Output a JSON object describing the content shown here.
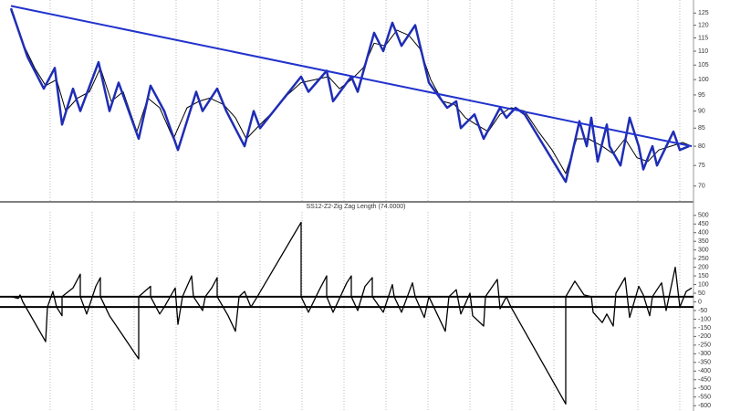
{
  "chart_data": [
    {
      "type": "line",
      "log_scale": true,
      "xlim": [
        10,
        760
      ],
      "ylim": [
        67,
        129
      ],
      "yticks": [
        70,
        75,
        80,
        85,
        90,
        95,
        100,
        105,
        110,
        115,
        120,
        125
      ],
      "series": [
        {
          "color": "#000000",
          "width": 1,
          "x": [
            12,
            25,
            38,
            50,
            62,
            72,
            85,
            98,
            110,
            122,
            135,
            150,
            162,
            175,
            190,
            205,
            218,
            230,
            245,
            258,
            270,
            285,
            300,
            315,
            330,
            345,
            360,
            372,
            385,
            398,
            410,
            422,
            435,
            448,
            460,
            472,
            485,
            498,
            510,
            522,
            535,
            548,
            560,
            575,
            590,
            605,
            620,
            632,
            645,
            660,
            672,
            685,
            698,
            710,
            722,
            735,
            748,
            758
          ],
          "values": [
            126,
            113,
            104,
            98,
            100,
            90,
            94,
            96,
            104,
            93,
            96,
            84,
            94,
            91,
            82,
            91,
            93,
            94,
            92,
            88,
            82,
            86,
            90,
            95,
            99,
            100,
            101,
            97,
            100,
            104,
            113,
            112,
            118,
            116,
            111,
            100,
            93,
            92,
            88,
            86,
            84,
            89,
            91,
            90,
            84,
            79,
            73,
            82,
            82,
            80,
            78,
            82,
            77,
            76,
            79,
            80,
            81,
            80
          ]
        },
        {
          "color": "#1f2db5",
          "width": 2.5,
          "x": [
            12,
            30,
            48,
            60,
            68,
            80,
            88,
            108,
            120,
            130,
            152,
            165,
            180,
            195,
            215,
            222,
            238,
            248,
            268,
            278,
            285,
            330,
            338,
            358,
            365,
            385,
            392,
            410,
            420,
            430,
            440,
            455,
            470,
            490,
            500,
            505,
            520,
            530,
            548,
            555,
            565,
            575,
            620,
            635,
            643,
            648,
            655,
            665,
            668,
            680,
            690,
            700,
            705,
            715,
            720,
            738,
            745,
            755
          ],
          "values": [
            127,
            108,
            97,
            104,
            86,
            97,
            90,
            106,
            90,
            99,
            82,
            98,
            90,
            79,
            96,
            90,
            97,
            90,
            80,
            90,
            85,
            101,
            96,
            103,
            93,
            101,
            96,
            117,
            110,
            121,
            112,
            120,
            99,
            91,
            93,
            85,
            89,
            82,
            91,
            88,
            91,
            89,
            71,
            87,
            80,
            88,
            76,
            86,
            80,
            75,
            88,
            80,
            74,
            80,
            75,
            84,
            79,
            80
          ]
        },
        {
          "color": "#2233cc",
          "width": 2,
          "x": [
            12,
            758
          ],
          "values": [
            128,
            80
          ]
        }
      ]
    },
    {
      "type": "line",
      "title": "SS12-Z2-Zig Zag Length (74.0000)",
      "xlim": [
        10,
        760
      ],
      "ylim": [
        -615,
        520
      ],
      "yticks": [
        500,
        450,
        400,
        350,
        300,
        250,
        200,
        150,
        100,
        50,
        0,
        -50,
        -100,
        -150,
        -200,
        -250,
        -300,
        -350,
        -400,
        -450,
        -500,
        -550,
        -600
      ],
      "reference_lines": [
        30,
        -30
      ],
      "series": [
        {
          "color": "#000000",
          "width": 1.3,
          "x": [
            12,
            20,
            22,
            25,
            50,
            52,
            58,
            62,
            68,
            68,
            80,
            88,
            88,
            95,
            105,
            110,
            110,
            120,
            152,
            152,
            165,
            165,
            175,
            180,
            192,
            195,
            200,
            210,
            212,
            222,
            225,
            232,
            238,
            238,
            250,
            258,
            262,
            268,
            275,
            282,
            330,
            330,
            338,
            350,
            358,
            358,
            365,
            380,
            385,
            385,
            392,
            400,
            408,
            408,
            420,
            430,
            432,
            440,
            452,
            455,
            465,
            470,
            488,
            492,
            500,
            505,
            515,
            518,
            530,
            532,
            545,
            548,
            555,
            560,
            620,
            620,
            630,
            640,
            648,
            650,
            660,
            665,
            672,
            675,
            685,
            690,
            700,
            705,
            712,
            715,
            720,
            725,
            730,
            740,
            745,
            752,
            758
          ],
          "values": [
            30,
            20,
            40,
            0,
            -230,
            -30,
            60,
            -30,
            -80,
            30,
            80,
            160,
            30,
            -70,
            90,
            140,
            30,
            -80,
            -330,
            30,
            90,
            30,
            -70,
            -30,
            80,
            -130,
            30,
            150,
            30,
            -50,
            30,
            80,
            140,
            30,
            -80,
            -170,
            30,
            60,
            -30,
            30,
            460,
            30,
            -60,
            70,
            150,
            30,
            -60,
            110,
            150,
            30,
            -50,
            90,
            140,
            30,
            -60,
            100,
            30,
            -60,
            110,
            30,
            -90,
            30,
            -170,
            30,
            70,
            -70,
            50,
            -80,
            -140,
            30,
            130,
            -40,
            30,
            -30,
            -590,
            30,
            120,
            40,
            30,
            -60,
            -120,
            -70,
            -140,
            50,
            140,
            -90,
            90,
            40,
            -80,
            30,
            70,
            110,
            -50,
            200,
            -30,
            60,
            80
          ]
        }
      ]
    }
  ]
}
